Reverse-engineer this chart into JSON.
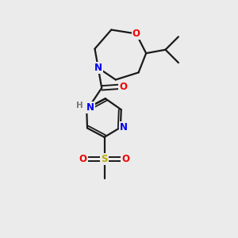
{
  "background_color": "#ebebeb",
  "bond_color": "#1a1a1a",
  "atom_colors": {
    "N": "#0000ee",
    "O": "#ee0000",
    "S": "#bbaa00",
    "C": "#1a1a1a",
    "H": "#777777"
  },
  "fig_width": 3.0,
  "fig_height": 3.0,
  "dpi": 100
}
